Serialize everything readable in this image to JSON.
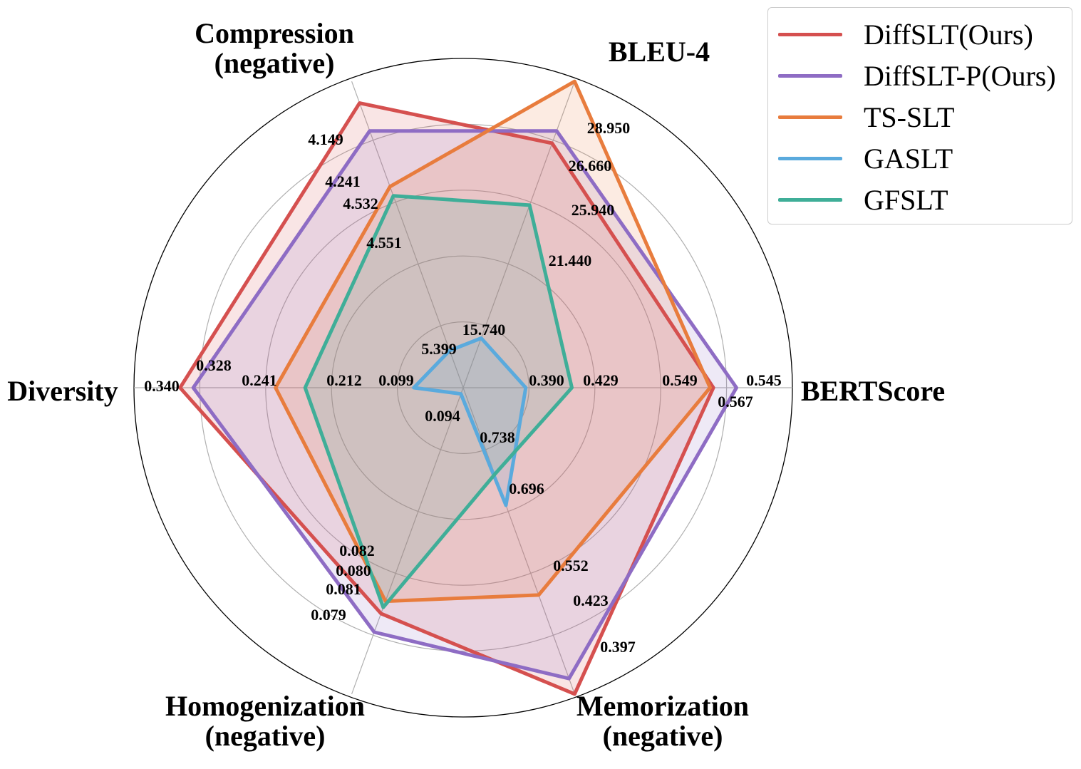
{
  "chart_data": {
    "type": "radar",
    "axes": [
      {
        "label": [
          "BLEU-4"
        ]
      },
      {
        "label": [
          "Compression",
          "(negative)"
        ]
      },
      {
        "label": [
          "Diversity"
        ]
      },
      {
        "label": [
          "Homogenization",
          "(negative)"
        ]
      },
      {
        "label": [
          "Memorization",
          "(negative)"
        ]
      },
      {
        "label": [
          "BERTScore"
        ]
      }
    ],
    "series": [
      {
        "name": "DiffSLT(Ours)",
        "color": "#d5504f",
        "values": [
          "25.940",
          "4.149",
          "0.340",
          "0.081",
          "0.397",
          "0.549"
        ],
        "radius": [
          0.79,
          0.92,
          0.86,
          0.73,
          0.99,
          0.76
        ]
      },
      {
        "name": "DiffSLT-P(Ours)",
        "color": "#8e6cc4",
        "values": [
          "26.660",
          "4.241",
          "0.328",
          "0.079",
          "0.423",
          "0.567"
        ],
        "radius": [
          0.83,
          0.83,
          0.82,
          0.79,
          0.94,
          0.83
        ]
      },
      {
        "name": "TS-SLT",
        "color": "#e87c3d",
        "values": [
          "28.950",
          "4.532",
          "0.241",
          "0.082",
          "0.552",
          "0.545"
        ],
        "radius": [
          0.99,
          0.65,
          0.57,
          0.69,
          0.67,
          0.75
        ]
      },
      {
        "name": "GASLT",
        "color": "#5aaadd",
        "values": [
          "15.740",
          "5.399",
          "0.099",
          "0.094",
          "0.738",
          "0.390"
        ],
        "radius": [
          0.16,
          0.12,
          0.15,
          0.02,
          0.38,
          0.19
        ]
      },
      {
        "name": "GFSLT",
        "color": "#3fae98",
        "values": [
          "21.440",
          "4.551",
          "0.212",
          "0.080",
          "0.696",
          "0.429"
        ],
        "radius": [
          0.59,
          0.62,
          0.48,
          0.71,
          0.28,
          0.33
        ]
      }
    ],
    "radial_grid": [
      0.2,
      0.4,
      0.6,
      0.8
    ],
    "grid": true,
    "legend_position": "top-right"
  }
}
